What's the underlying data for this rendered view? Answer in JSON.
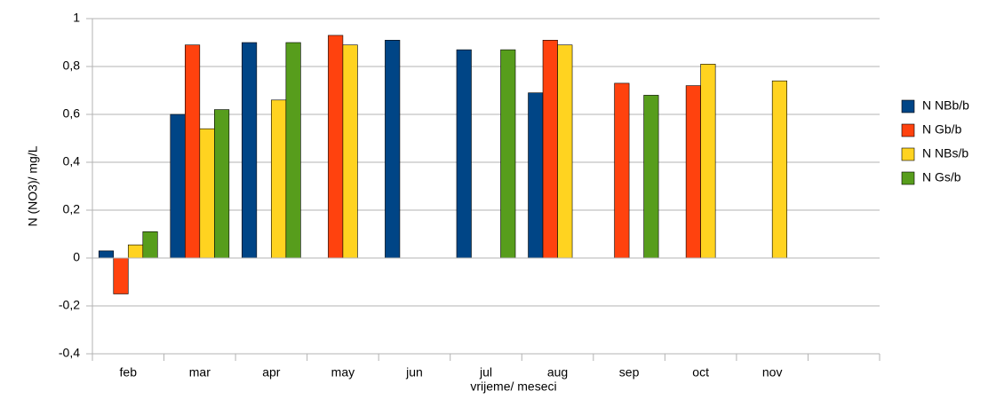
{
  "chart_data": {
    "type": "bar",
    "x_label": "vrijeme/ meseci",
    "y_label": "N (NO3)/ mg/L",
    "categories": [
      "feb",
      "mar",
      "apr",
      "may",
      "jun",
      "jul",
      "aug",
      "sep",
      "oct",
      "nov",
      null
    ],
    "series": [
      {
        "name": "N NBb/b",
        "color": "#004586",
        "values": [
          0.03,
          0.6,
          0.9,
          null,
          0.91,
          0.87,
          0.69,
          null,
          null,
          null,
          null
        ]
      },
      {
        "name": "N Gb/b",
        "color": "#ff420e",
        "values": [
          -0.15,
          0.89,
          null,
          0.93,
          null,
          null,
          0.91,
          0.73,
          0.72,
          null,
          null
        ]
      },
      {
        "name": "N NBs/b",
        "color": "#ffd320",
        "values": [
          0.055,
          0.54,
          0.66,
          0.89,
          null,
          null,
          0.89,
          null,
          0.81,
          0.74,
          null
        ]
      },
      {
        "name": "N Gs/b",
        "color": "#579d1c",
        "values": [
          0.11,
          0.62,
          0.9,
          null,
          null,
          0.87,
          null,
          0.68,
          null,
          null,
          null
        ]
      }
    ],
    "ylim": [
      -0.4,
      1
    ],
    "yticks": [
      {
        "value": -0.4,
        "label": "-0,4"
      },
      {
        "value": -0.2,
        "label": "-0,2"
      },
      0,
      {
        "value": 0.2,
        "label": "0,2"
      },
      {
        "value": 0.4,
        "label": "0,4"
      },
      {
        "value": 0.6,
        "label": "0,6"
      },
      {
        "value": 0.8,
        "label": "0,8"
      },
      1
    ],
    "grid": true,
    "legend": "right"
  }
}
